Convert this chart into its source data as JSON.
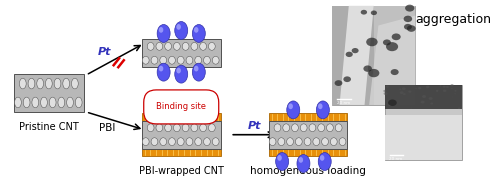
{
  "bg_color": "#ffffff",
  "fig_width": 5.0,
  "fig_height": 1.9,
  "dpi": 100,
  "pristine_cnt_label": "Pristine CNT",
  "pbi_label": "PBI",
  "pt_label": "Pt",
  "binding_site_label": "Binding site",
  "pbi_wrapped_label": "PBI-wrapped CNT",
  "pt_label2": "Pt",
  "aggregation_label": "aggregation",
  "homogeneous_label": "homogeneous loading",
  "cnt_body_color": "#b8b8b8",
  "cnt_hex_color": "#e0e0e0",
  "cnt_outline_color": "#505050",
  "pbi_color_top": "#e8900a",
  "pbi_color_bottom": "#e8900a",
  "pbi_stripe_color": "#ffd060",
  "pt_particle_color": "#5555ee",
  "pt_particle_edge": "#3333aa",
  "pt_highlight_color": "#aaaaff",
  "arrow_color": "#000000",
  "pt_text_color": "#3333bb",
  "binding_site_text_color": "#cc0000",
  "binding_site_box_fc": "#ffffff",
  "no_sign_color": "#dd0000",
  "label_color": "#000000",
  "pristine_label_fontsize": 7.0,
  "pbi_wrapped_label_fontsize": 7.0,
  "aggregation_fontsize": 9.0,
  "homogeneous_fontsize": 7.5,
  "pt_fontsize": 8.0,
  "pbi_fontsize": 7.5,
  "binding_site_fontsize": 6.0
}
